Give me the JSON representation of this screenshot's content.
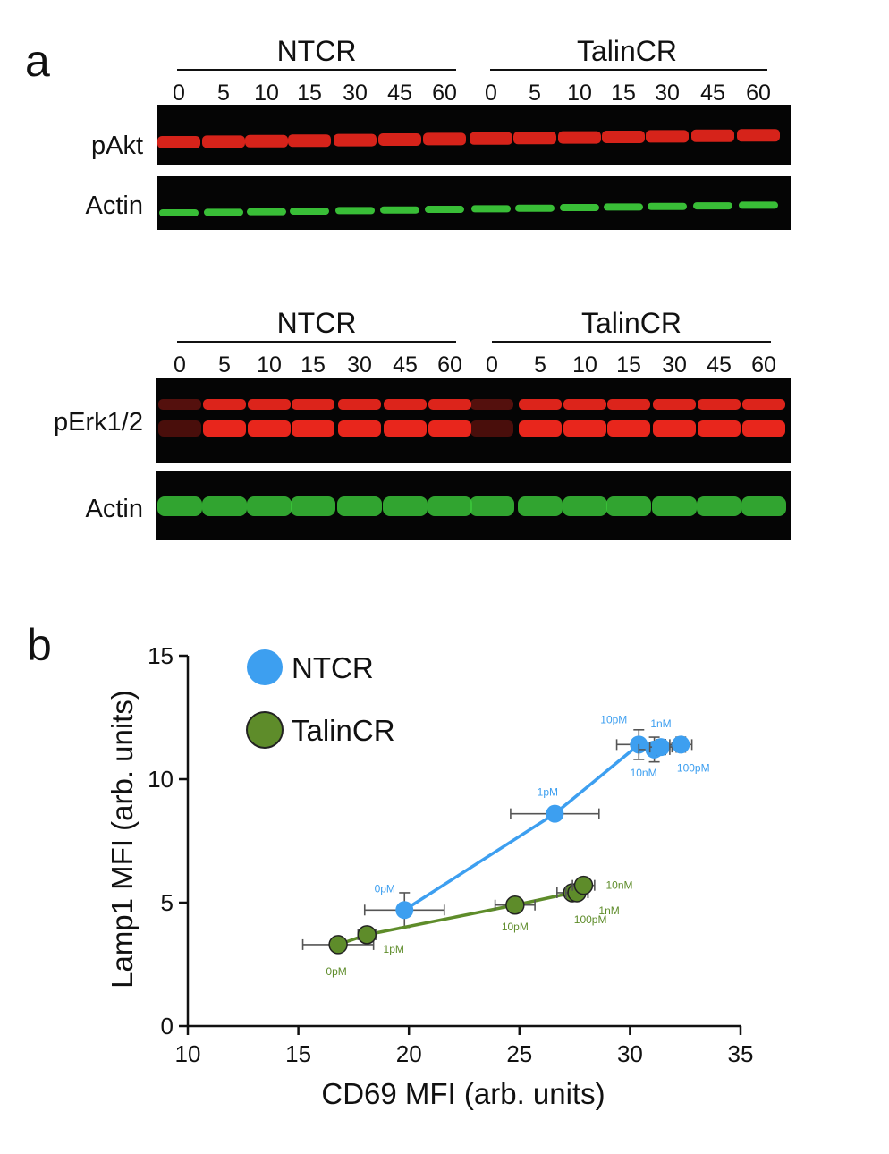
{
  "panel_a": {
    "letter": "a",
    "blot_top": {
      "groups": [
        "NTCR",
        "TalinCR"
      ],
      "lanes": [
        "0",
        "5",
        "10",
        "15",
        "30",
        "45",
        "60",
        "0",
        "5",
        "10",
        "15",
        "30",
        "45",
        "60"
      ],
      "rows": [
        "pAkt",
        "Actin"
      ]
    },
    "blot_bottom": {
      "groups": [
        "NTCR",
        "TalinCR"
      ],
      "lanes": [
        "0",
        "5",
        "10",
        "15",
        "30",
        "45",
        "60",
        "0",
        "5",
        "10",
        "15",
        "30",
        "45",
        "60"
      ],
      "rows": [
        "pErk1/2",
        "Actin"
      ]
    },
    "colors": {
      "phospho": "#e8261c",
      "actin": "#3cc83a",
      "background": "#050505"
    }
  },
  "panel_b": {
    "letter": "b"
  },
  "chart_data": {
    "type": "scatter",
    "xlabel": "CD69 MFI (arb. units)",
    "ylabel": "Lamp1 MFI (arb. units)",
    "xlim": [
      10,
      35
    ],
    "ylim": [
      0,
      15
    ],
    "xticks": [
      "10",
      "15",
      "20",
      "25",
      "30",
      "35"
    ],
    "yticks": [
      "0",
      "5",
      "10",
      "15"
    ],
    "legend_position": "top-left",
    "series": [
      {
        "name": "NTCR",
        "color": "#3d9ff0",
        "points": [
          {
            "x": 19.8,
            "y": 4.7,
            "xerr": 1.8,
            "yerr": 0.7,
            "label": "0pM"
          },
          {
            "x": 26.6,
            "y": 8.6,
            "xerr": 2.0,
            "yerr": 0.0,
            "label": "1pM"
          },
          {
            "x": 30.4,
            "y": 11.4,
            "xerr": 1.0,
            "yerr": 0.6,
            "label": "10pM"
          },
          {
            "x": 31.1,
            "y": 11.2,
            "xerr": 0.7,
            "yerr": 0.5,
            "label": "10nM"
          },
          {
            "x": 31.4,
            "y": 11.3,
            "xerr": 0.5,
            "yerr": 0.3,
            "label": "1nM"
          },
          {
            "x": 32.3,
            "y": 11.4,
            "xerr": 0.5,
            "yerr": 0.3,
            "label": "100pM"
          }
        ]
      },
      {
        "name": "TalinCR",
        "color": "#5e8c2a",
        "points": [
          {
            "x": 16.8,
            "y": 3.3,
            "xerr": 1.6,
            "yerr": 0.0,
            "label": "0pM"
          },
          {
            "x": 18.1,
            "y": 3.7,
            "xerr": 0.4,
            "yerr": 0.0,
            "label": "1pM"
          },
          {
            "x": 24.8,
            "y": 4.9,
            "xerr": 0.9,
            "yerr": 0.0,
            "label": "10pM"
          },
          {
            "x": 27.4,
            "y": 5.4,
            "xerr": 0.7,
            "yerr": 0.3,
            "label": "100pM"
          },
          {
            "x": 27.6,
            "y": 5.4,
            "xerr": 0.5,
            "yerr": 0.2,
            "label": "1nM"
          },
          {
            "x": 27.9,
            "y": 5.7,
            "xerr": 0.5,
            "yerr": 0.3,
            "label": "10nM"
          }
        ]
      }
    ]
  }
}
